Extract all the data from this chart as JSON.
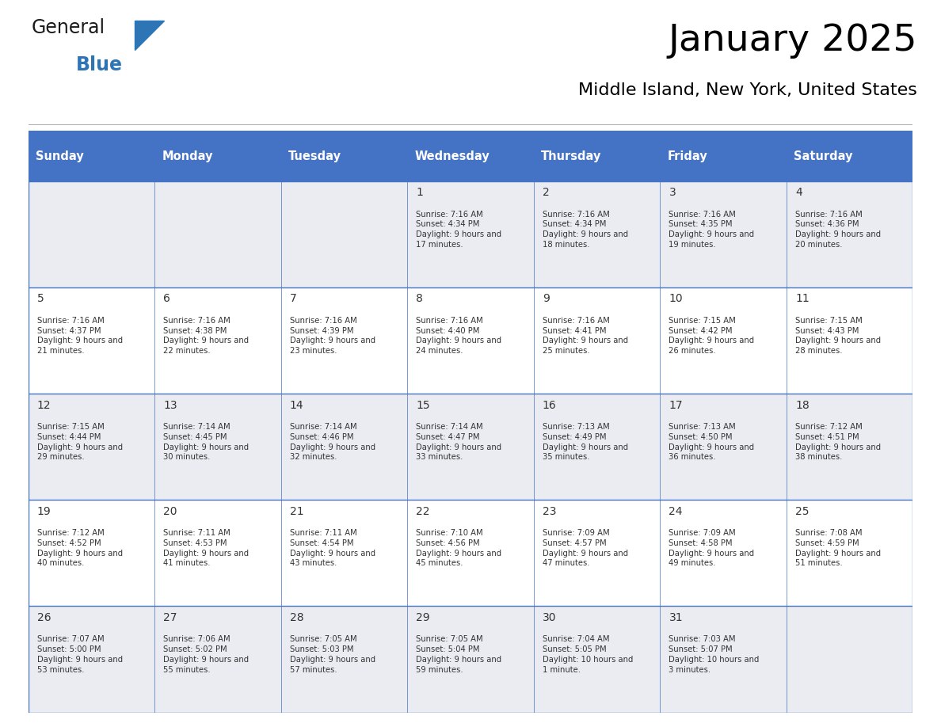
{
  "title": "January 2025",
  "subtitle": "Middle Island, New York, United States",
  "days_of_week": [
    "Sunday",
    "Monday",
    "Tuesday",
    "Wednesday",
    "Thursday",
    "Friday",
    "Saturday"
  ],
  "header_bg": "#4472C4",
  "header_text": "#FFFFFF",
  "cell_bg_odd": "#EAECF2",
  "cell_bg_even": "#FFFFFF",
  "cell_border_color": "#4472C4",
  "title_color": "#000000",
  "subtitle_color": "#000000",
  "text_color": "#333333",
  "calendar": [
    [
      null,
      null,
      null,
      {
        "day": 1,
        "sunrise": "7:16 AM",
        "sunset": "4:34 PM",
        "daylight": "9 hours and 17 minutes."
      },
      {
        "day": 2,
        "sunrise": "7:16 AM",
        "sunset": "4:34 PM",
        "daylight": "9 hours and 18 minutes."
      },
      {
        "day": 3,
        "sunrise": "7:16 AM",
        "sunset": "4:35 PM",
        "daylight": "9 hours and 19 minutes."
      },
      {
        "day": 4,
        "sunrise": "7:16 AM",
        "sunset": "4:36 PM",
        "daylight": "9 hours and 20 minutes."
      }
    ],
    [
      {
        "day": 5,
        "sunrise": "7:16 AM",
        "sunset": "4:37 PM",
        "daylight": "9 hours and 21 minutes."
      },
      {
        "day": 6,
        "sunrise": "7:16 AM",
        "sunset": "4:38 PM",
        "daylight": "9 hours and 22 minutes."
      },
      {
        "day": 7,
        "sunrise": "7:16 AM",
        "sunset": "4:39 PM",
        "daylight": "9 hours and 23 minutes."
      },
      {
        "day": 8,
        "sunrise": "7:16 AM",
        "sunset": "4:40 PM",
        "daylight": "9 hours and 24 minutes."
      },
      {
        "day": 9,
        "sunrise": "7:16 AM",
        "sunset": "4:41 PM",
        "daylight": "9 hours and 25 minutes."
      },
      {
        "day": 10,
        "sunrise": "7:15 AM",
        "sunset": "4:42 PM",
        "daylight": "9 hours and 26 minutes."
      },
      {
        "day": 11,
        "sunrise": "7:15 AM",
        "sunset": "4:43 PM",
        "daylight": "9 hours and 28 minutes."
      }
    ],
    [
      {
        "day": 12,
        "sunrise": "7:15 AM",
        "sunset": "4:44 PM",
        "daylight": "9 hours and 29 minutes."
      },
      {
        "day": 13,
        "sunrise": "7:14 AM",
        "sunset": "4:45 PM",
        "daylight": "9 hours and 30 minutes."
      },
      {
        "day": 14,
        "sunrise": "7:14 AM",
        "sunset": "4:46 PM",
        "daylight": "9 hours and 32 minutes."
      },
      {
        "day": 15,
        "sunrise": "7:14 AM",
        "sunset": "4:47 PM",
        "daylight": "9 hours and 33 minutes."
      },
      {
        "day": 16,
        "sunrise": "7:13 AM",
        "sunset": "4:49 PM",
        "daylight": "9 hours and 35 minutes."
      },
      {
        "day": 17,
        "sunrise": "7:13 AM",
        "sunset": "4:50 PM",
        "daylight": "9 hours and 36 minutes."
      },
      {
        "day": 18,
        "sunrise": "7:12 AM",
        "sunset": "4:51 PM",
        "daylight": "9 hours and 38 minutes."
      }
    ],
    [
      {
        "day": 19,
        "sunrise": "7:12 AM",
        "sunset": "4:52 PM",
        "daylight": "9 hours and 40 minutes."
      },
      {
        "day": 20,
        "sunrise": "7:11 AM",
        "sunset": "4:53 PM",
        "daylight": "9 hours and 41 minutes."
      },
      {
        "day": 21,
        "sunrise": "7:11 AM",
        "sunset": "4:54 PM",
        "daylight": "9 hours and 43 minutes."
      },
      {
        "day": 22,
        "sunrise": "7:10 AM",
        "sunset": "4:56 PM",
        "daylight": "9 hours and 45 minutes."
      },
      {
        "day": 23,
        "sunrise": "7:09 AM",
        "sunset": "4:57 PM",
        "daylight": "9 hours and 47 minutes."
      },
      {
        "day": 24,
        "sunrise": "7:09 AM",
        "sunset": "4:58 PM",
        "daylight": "9 hours and 49 minutes."
      },
      {
        "day": 25,
        "sunrise": "7:08 AM",
        "sunset": "4:59 PM",
        "daylight": "9 hours and 51 minutes."
      }
    ],
    [
      {
        "day": 26,
        "sunrise": "7:07 AM",
        "sunset": "5:00 PM",
        "daylight": "9 hours and 53 minutes."
      },
      {
        "day": 27,
        "sunrise": "7:06 AM",
        "sunset": "5:02 PM",
        "daylight": "9 hours and 55 minutes."
      },
      {
        "day": 28,
        "sunrise": "7:05 AM",
        "sunset": "5:03 PM",
        "daylight": "9 hours and 57 minutes."
      },
      {
        "day": 29,
        "sunrise": "7:05 AM",
        "sunset": "5:04 PM",
        "daylight": "9 hours and 59 minutes."
      },
      {
        "day": 30,
        "sunrise": "7:04 AM",
        "sunset": "5:05 PM",
        "daylight": "10 hours and 1 minute."
      },
      {
        "day": 31,
        "sunrise": "7:03 AM",
        "sunset": "5:07 PM",
        "daylight": "10 hours and 3 minutes."
      },
      null
    ]
  ],
  "logo_general_color": "#1a1a1a",
  "logo_blue_color": "#2E75B6",
  "logo_triangle_color": "#2E75B6",
  "fig_width": 11.88,
  "fig_height": 9.18,
  "dpi": 100
}
